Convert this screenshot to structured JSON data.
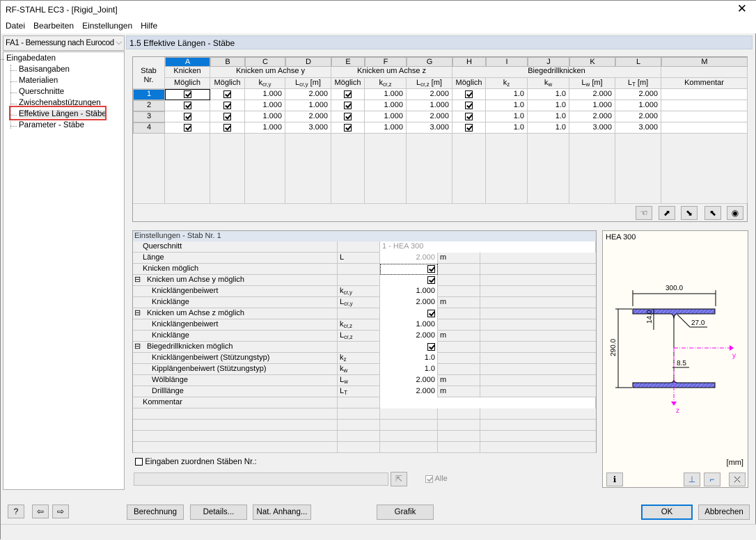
{
  "window": {
    "title": "RF-STAHL EC3 - [Rigid_Joint]",
    "close": "✕"
  },
  "menu": [
    "Datei",
    "Bearbeiten",
    "Einstellungen",
    "Hilfe"
  ],
  "case_select": "FA1 - Bemessung nach Eurocod",
  "tree": {
    "root": "Eingabedaten",
    "items": [
      "Basisangaben",
      "Materialien",
      "Querschnitte",
      "Zwischenabstützungen",
      "Effektive Längen - Stäbe",
      "Parameter - Stäbe"
    ],
    "selected": 4
  },
  "panel_title": "1.5 Effektive Längen - Stäbe",
  "table": {
    "letters": [
      "A",
      "B",
      "C",
      "D",
      "E",
      "F",
      "G",
      "H",
      "I",
      "J",
      "K",
      "L",
      "M"
    ],
    "stab_header": "Stab Nr.",
    "groups": {
      "A": "Knicken",
      "y": "Knicken um Achse y",
      "z": "Knicken um Achse z",
      "lt": "Biegedrillknicken"
    },
    "sub": [
      "Möglich",
      "Möglich",
      "k cr,y",
      "L cr,y [m]",
      "Möglich",
      "k cr,z",
      "L cr,z [m]",
      "Möglich",
      "k z",
      "k w",
      "L w [m]",
      "L T [m]",
      "Kommentar"
    ],
    "rows": [
      {
        "nr": "1",
        "a": true,
        "b": true,
        "kcry": "1.000",
        "lcry": "2.000",
        "e": true,
        "kcrz": "1.000",
        "lcrz": "2.000",
        "h": true,
        "kz": "1.0",
        "kw": "1.0",
        "lw": "2.000",
        "lt": "2.000",
        "kommentar": ""
      },
      {
        "nr": "2",
        "a": true,
        "b": true,
        "kcry": "1.000",
        "lcry": "1.000",
        "e": true,
        "kcrz": "1.000",
        "lcrz": "1.000",
        "h": true,
        "kz": "1.0",
        "kw": "1.0",
        "lw": "1.000",
        "lt": "1.000",
        "kommentar": ""
      },
      {
        "nr": "3",
        "a": true,
        "b": true,
        "kcry": "1.000",
        "lcry": "2.000",
        "e": true,
        "kcrz": "1.000",
        "lcrz": "2.000",
        "h": true,
        "kz": "1.0",
        "kw": "1.0",
        "lw": "2.000",
        "lt": "2.000",
        "kommentar": ""
      },
      {
        "nr": "4",
        "a": true,
        "b": true,
        "kcry": "1.000",
        "lcry": "3.000",
        "e": true,
        "kcrz": "1.000",
        "lcrz": "3.000",
        "h": true,
        "kz": "1.0",
        "kw": "1.0",
        "lw": "3.000",
        "lt": "3.000",
        "kommentar": ""
      }
    ],
    "toolbar_icons": [
      "hand-pointer-icon",
      "excel-export-icon",
      "excel-import-icon",
      "select-member-icon",
      "view-icon"
    ]
  },
  "settings": {
    "title": "Einstellungen - Stab Nr. 1",
    "rows": [
      {
        "label": "Querschnitt",
        "symbol": "",
        "value": "1 - HEA 300",
        "unit": "",
        "level": 0,
        "grey": true
      },
      {
        "label": "Länge",
        "symbol": "L",
        "value": "2.000",
        "unit": "m",
        "level": 0,
        "grey": true
      },
      {
        "label": "Knicken möglich",
        "symbol": "",
        "check": true,
        "unit": "",
        "level": 0
      },
      {
        "label": "Knicken um Achse y möglich",
        "symbol": "",
        "check": true,
        "unit": "",
        "level": -1
      },
      {
        "label": "Knicklängenbeiwert",
        "symbol": "k cr,y",
        "value": "1.000",
        "unit": "",
        "level": 1
      },
      {
        "label": "Knicklänge",
        "symbol": "L cr,y",
        "value": "2.000",
        "unit": "m",
        "level": 1
      },
      {
        "label": "Knicken um Achse z möglich",
        "symbol": "",
        "check": true,
        "unit": "",
        "level": -1
      },
      {
        "label": "Knicklängenbeiwert",
        "symbol": "k cr,z",
        "value": "1.000",
        "unit": "",
        "level": 1
      },
      {
        "label": "Knicklänge",
        "symbol": "L cr,z",
        "value": "2.000",
        "unit": "m",
        "level": 1
      },
      {
        "label": "Biegedrillknicken möglich",
        "symbol": "",
        "check": true,
        "unit": "",
        "level": -1
      },
      {
        "label": "Knicklängenbeiwert (Stützungstyp)",
        "symbol": "k z",
        "value": "1.0",
        "unit": "",
        "level": 1
      },
      {
        "label": "Kipplängenbeiwert (Stützungstyp)",
        "symbol": "k w",
        "value": "1.0",
        "unit": "",
        "level": 1
      },
      {
        "label": "Wölblänge",
        "symbol": "L w",
        "value": "2.000",
        "unit": "m",
        "level": 1
      },
      {
        "label": "Drilllänge",
        "symbol": "L T",
        "value": "2.000",
        "unit": "m",
        "level": 1
      },
      {
        "label": "Kommentar",
        "symbol": "",
        "value": "",
        "unit": "",
        "level": 0
      }
    ],
    "assign_label": "Eingaben zuordnen Stäben Nr.:",
    "assign_value": "",
    "all_label": "Alle"
  },
  "section": {
    "name": "HEA 300",
    "b": "300.0",
    "h": "290.0",
    "tf": "14.0",
    "r": "27.0",
    "tw": "8.5",
    "axis_y": "y",
    "axis_z": "z",
    "unit": "[mm]",
    "fill": "#6b6be0",
    "axis_color": "#ff00ff"
  },
  "buttons": {
    "calc": "Berechnung",
    "details": "Details...",
    "annex": "Nat. Anhang...",
    "graphic": "Grafik",
    "ok": "OK",
    "cancel": "Abbrechen"
  }
}
